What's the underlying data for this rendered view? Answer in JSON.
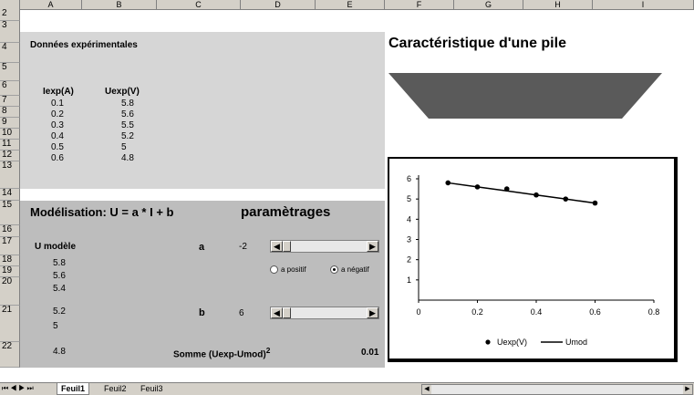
{
  "columns": [
    "A",
    "B",
    "C",
    "D",
    "E",
    "F",
    "G",
    "H",
    "I"
  ],
  "rows": [
    "2",
    "3",
    "4",
    "5",
    "6",
    "7",
    "8",
    "9",
    "10",
    "11",
    "12",
    "13",
    "14",
    "15",
    "16",
    "17",
    "18",
    "19",
    "20",
    "21",
    "22"
  ],
  "data_section": {
    "title": "Données expérimentales",
    "col_i": "Iexp(A)",
    "col_u": "Uexp(V)",
    "i_values": [
      "0.1",
      "0.2",
      "0.3",
      "0.4",
      "0.5",
      "0.6"
    ],
    "u_values": [
      "5.8",
      "5.6",
      "5.5",
      "5.2",
      "5",
      "4.8"
    ]
  },
  "model_section": {
    "title": "Modélisation: U = a * I + b",
    "params_title": "paramètrages",
    "u_model_label": "U modèle",
    "u_model_values": [
      "5.8",
      "5.6",
      "5.4",
      "5.2",
      "5",
      "4.8"
    ],
    "a_label": "a",
    "a_value": "-2",
    "b_label": "b",
    "b_value": "6",
    "radio_pos": "a positif",
    "radio_neg": "a négatif",
    "radio_selected": "a négatif",
    "sum_label": "Somme (Uexp-Umod)",
    "sum_exp": "2",
    "sum_value": "0.01"
  },
  "chart_title": "Caractéristique d'une pile",
  "chart_data": {
    "type": "scatter",
    "x": [
      0.1,
      0.2,
      0.3,
      0.4,
      0.5,
      0.6
    ],
    "series": [
      {
        "name": "Uexp(V)",
        "values": [
          5.8,
          5.6,
          5.5,
          5.2,
          5,
          4.8
        ],
        "style": "markers"
      },
      {
        "name": "Umod",
        "values": [
          5.8,
          5.6,
          5.4,
          5.2,
          5,
          4.8
        ],
        "style": "line"
      }
    ],
    "xlim": [
      0,
      0.8
    ],
    "ylim": [
      0,
      6
    ],
    "xticks": [
      "0",
      "0.2",
      "0.4",
      "0.6",
      "0.8"
    ],
    "yticks": [
      "1",
      "2",
      "3",
      "4",
      "5",
      "6"
    ],
    "legend_position": "bottom"
  },
  "sheet_tabs": [
    "Feuil1",
    "Feuil2",
    "Feuil3"
  ],
  "active_tab": "Feuil1",
  "colors": {
    "panel_light": "#d6d6d6",
    "panel_dark": "#bdbdbd",
    "trapezoid": "#5a5a5a"
  }
}
